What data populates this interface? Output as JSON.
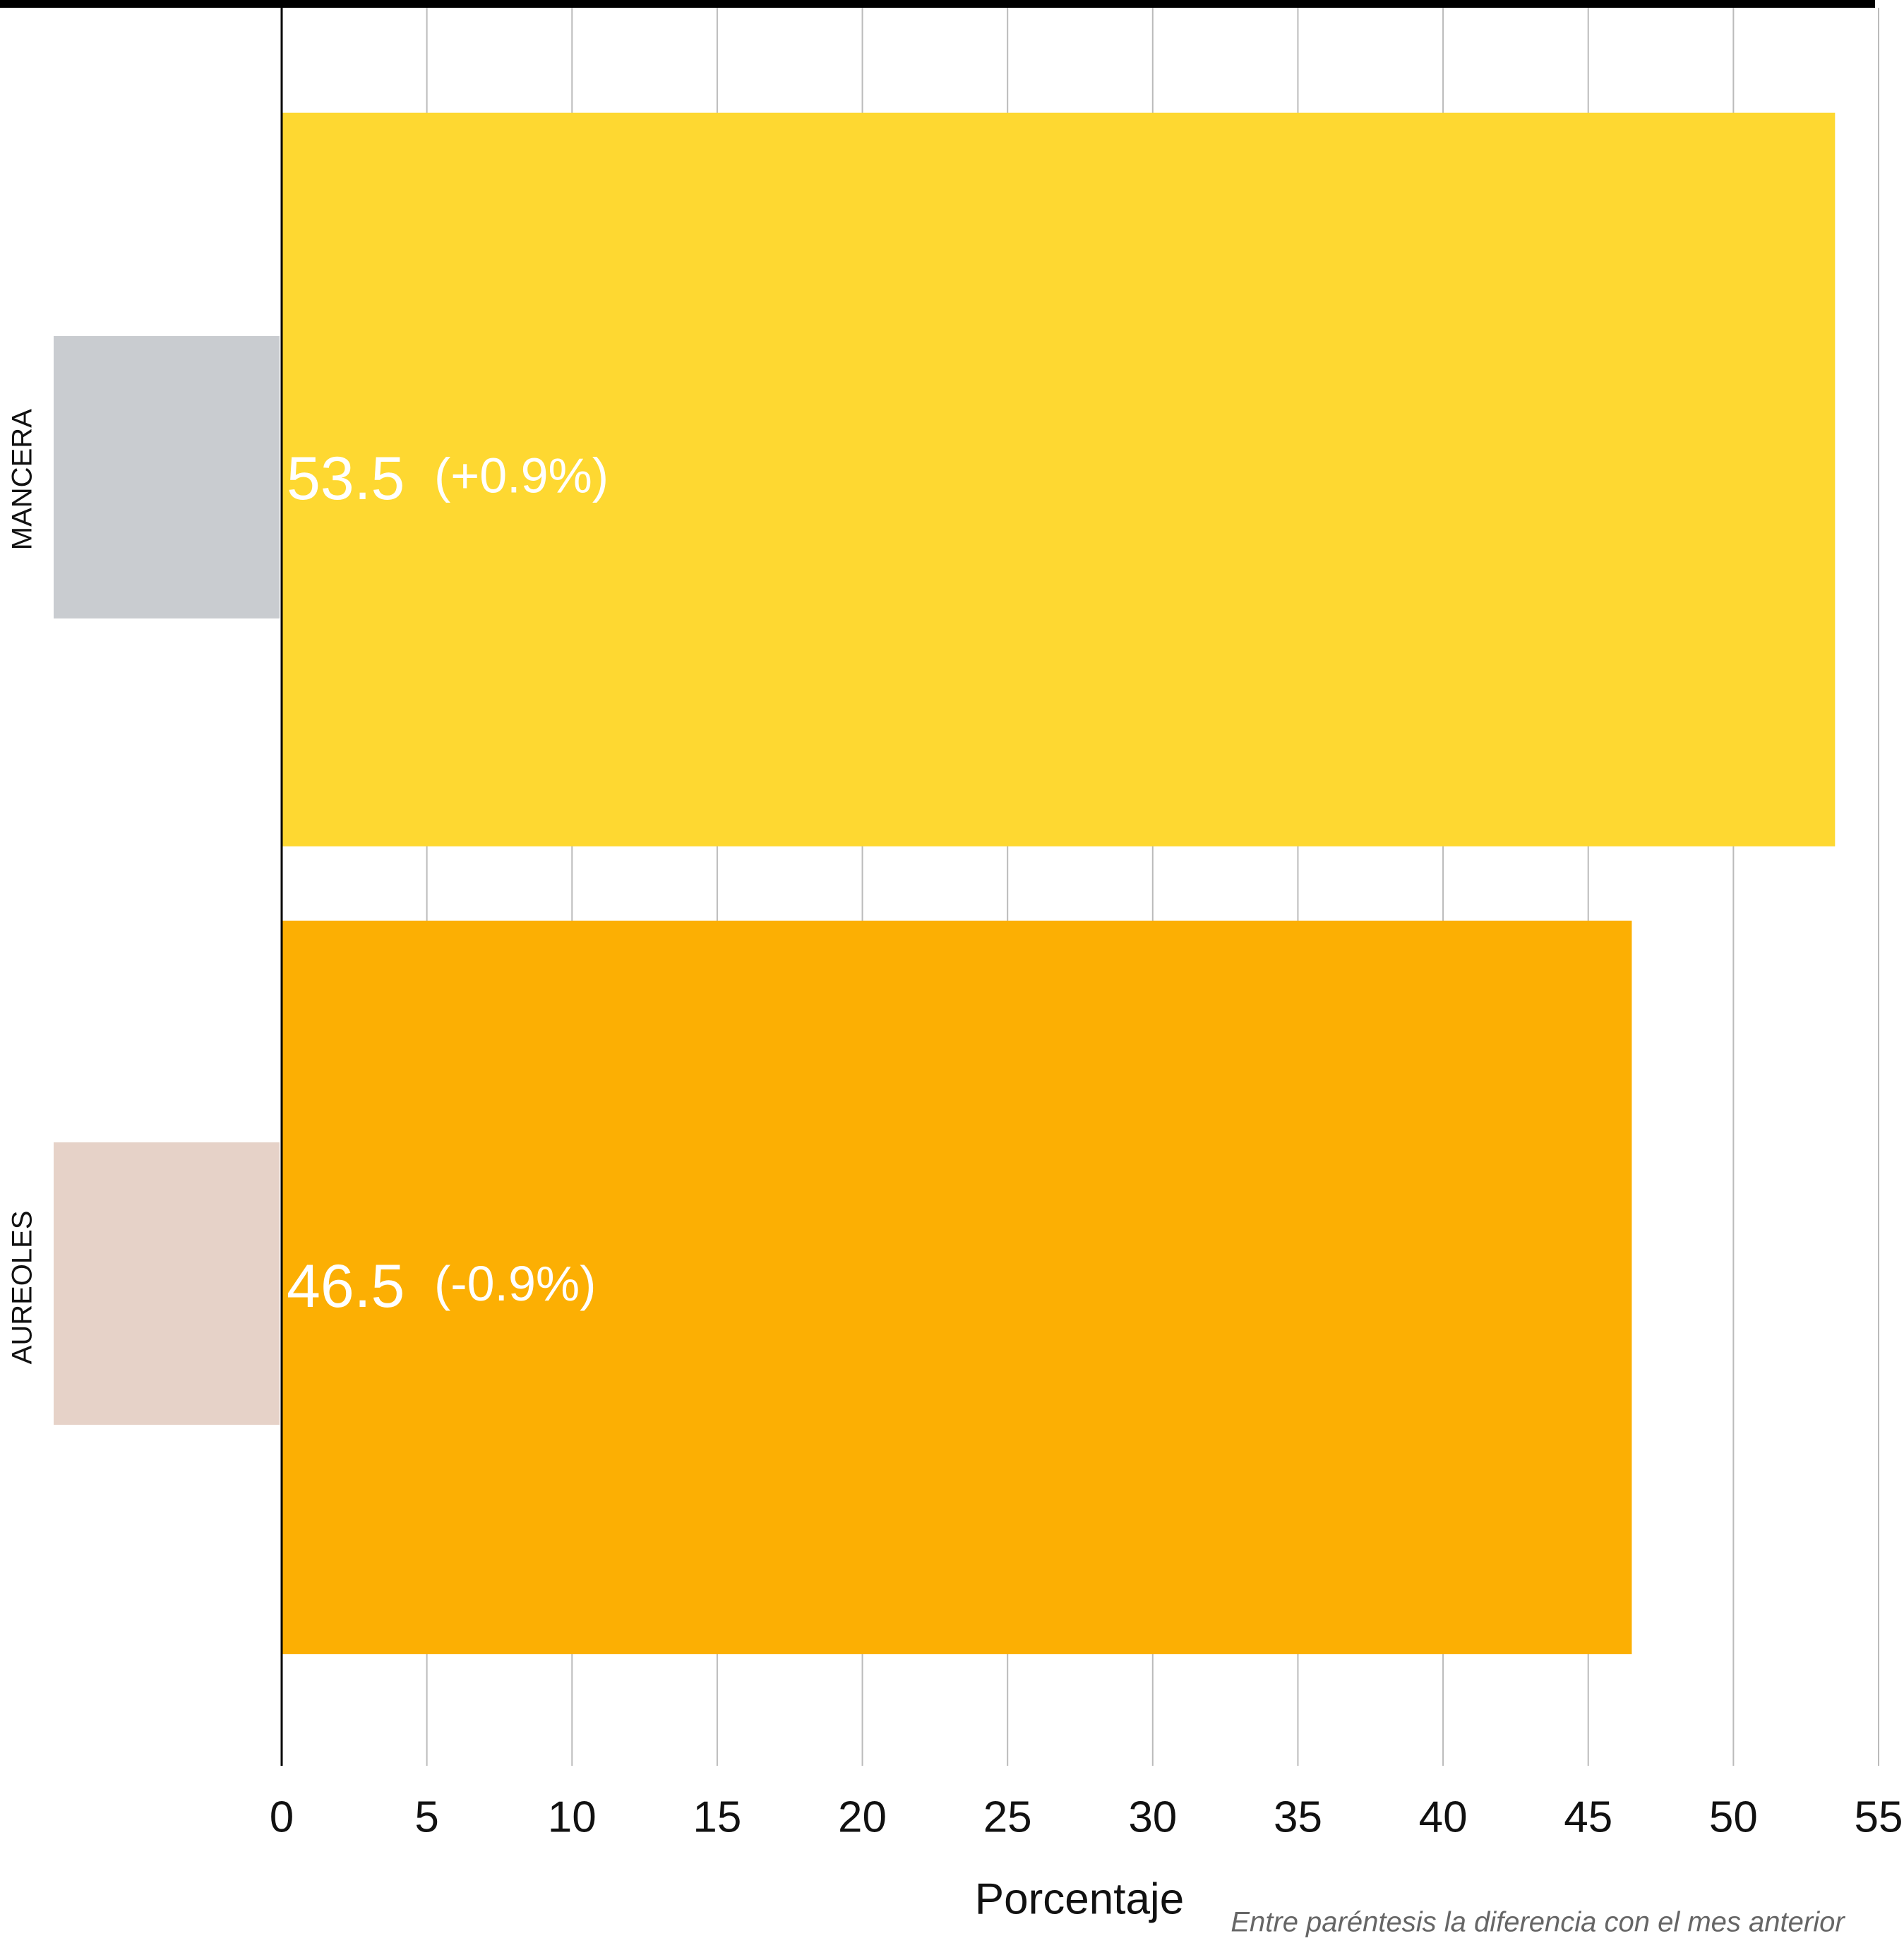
{
  "chart_data": {
    "type": "bar",
    "orientation": "horizontal",
    "categories": [
      "MANCERA",
      "AUREOLES"
    ],
    "values": [
      53.5,
      46.5
    ],
    "colors": [
      "#fed831",
      "#fcaf03"
    ],
    "changes": [
      "(+0.9%)",
      "(-0.9%)"
    ],
    "xlabel": "Porcentaje",
    "note": "Entre paréntesis la diferencia con el mes anterior",
    "xlim": [
      0,
      55
    ],
    "xticks": [
      0,
      5,
      10,
      15,
      20,
      25,
      30,
      35,
      40,
      45,
      50,
      55
    ],
    "grid": true
  }
}
